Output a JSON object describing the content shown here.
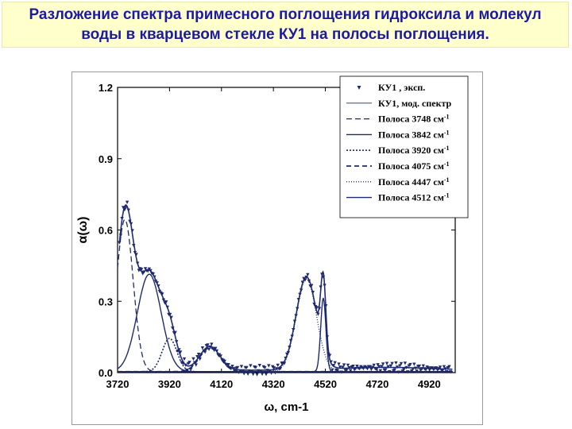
{
  "header": {
    "title": "Разложение спектра примесного поглощения гидроксила и молекул воды в кварцевом стекле КУ1 на полосы поглощения."
  },
  "colors": {
    "title_bg": "#ffffcc",
    "title_text": "#1a1aa6",
    "plot": "#1f2a6e"
  },
  "chart_data": {
    "type": "line",
    "title": "",
    "xlabel": "ω, cm-1",
    "ylabel": "α(ω)",
    "xlim": [
      3720,
      5020
    ],
    "ylim": [
      0,
      1.2
    ],
    "xticks": [
      3720,
      3920,
      4120,
      4320,
      4520,
      4720,
      4920
    ],
    "yticks": [
      "0.0",
      "0.3",
      "0.6",
      "0.9",
      "1.2"
    ],
    "legend_position": "top-right",
    "bands": [
      {
        "name": "Полоса 3748 см-1",
        "label": "Полоса 3748 см",
        "center": 3748,
        "amplitude": 0.64,
        "width": 45,
        "style": "dash"
      },
      {
        "name": "Полоса 3842 см-1",
        "label": "Полоса 3842 см",
        "center": 3842,
        "amplitude": 0.41,
        "width": 65,
        "style": "solid"
      },
      {
        "name": "Полоса 3920 см-1",
        "label": "Полоса 3920 см",
        "center": 3920,
        "amplitude": 0.14,
        "width": 40,
        "style": "dot"
      },
      {
        "name": "Полоса 4075 см-1",
        "label": "Полоса 4075 см",
        "center": 4075,
        "amplitude": 0.1,
        "width": 55,
        "style": "dash-thick"
      },
      {
        "name": "Полоса 4447 см-1",
        "label": "Полоса 4447 см",
        "center": 4447,
        "amplitude": 0.39,
        "width": 55,
        "style": "dot-fine"
      },
      {
        "name": "Полоса 4512 см-1",
        "label": "Полоса 4512 см",
        "center": 4512,
        "amplitude": 0.31,
        "width": 14,
        "style": "solid"
      }
    ],
    "series": [
      {
        "name": "КУ1 , эксп.",
        "style": "markers"
      },
      {
        "name": "КУ1, мод. спектр",
        "style": "line"
      }
    ],
    "legend_superscript": "-1"
  }
}
